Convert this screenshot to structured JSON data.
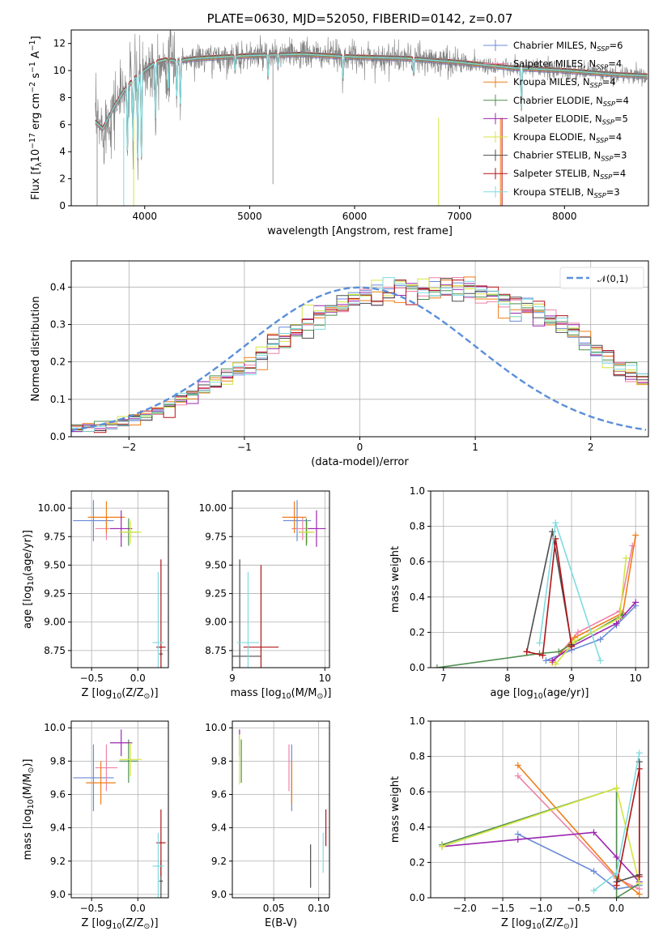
{
  "chart_data": [
    {
      "type": "line",
      "title": "PLATE=0630, MJD=52050, FIBERID=0142, z=0.07",
      "xlabel": "wavelength [Angstrom, rest frame]",
      "ylabel": "Flux [f$_\\lambda$10$^{-17}$ erg cm$^{-2}$ s$^{-1}$ A$^{-1}$]",
      "xlim": [
        3300,
        8800
      ],
      "ylim": [
        0,
        13
      ],
      "xticks": [
        4000,
        5000,
        6000,
        7000,
        8000
      ],
      "yticks": [
        0,
        2,
        4,
        6,
        8,
        10,
        12
      ],
      "legend_position": "right",
      "data_color": "#808080",
      "spectrum_envelope": {
        "x": [
          3530,
          3600,
          3700,
          3800,
          3900,
          4000,
          4100,
          4200,
          4300,
          4500,
          5000,
          5500,
          6000,
          6500,
          7000,
          7500,
          8000,
          8500,
          8800
        ],
        "y": [
          6.2,
          5.7,
          7.2,
          8.5,
          9.4,
          10.0,
          10.6,
          10.8,
          10.7,
          10.9,
          11.1,
          11.2,
          11.0,
          10.9,
          10.6,
          10.2,
          10.0,
          9.7,
          9.6
        ]
      },
      "series": [
        {
          "name": "Chabrier MILES, N$_{SSP}$=6",
          "color": "#6a8ad8"
        },
        {
          "name": "Salpeter MILES, N$_{SSP}$=4",
          "color": "#ee82a8"
        },
        {
          "name": "Kroupa MILES, N$_{SSP}$=4",
          "color": "#f07d17"
        },
        {
          "name": "Chabrier ELODIE, N$_{SSP}$=4",
          "color": "#4f8f4f"
        },
        {
          "name": "Salpeter ELODIE, N$_{SSP}$=5",
          "color": "#9b27b0"
        },
        {
          "name": "Kroupa ELODIE, N$_{SSP}$=4",
          "color": "#d4e640"
        },
        {
          "name": "Chabrier STELIB, N$_{SSP}$=3",
          "color": "#4d4d4d"
        },
        {
          "name": "Salpeter STELIB, N$_{SSP}$=4",
          "color": "#b31318"
        },
        {
          "name": "Kroupa STELIB, N$_{SSP}$=3",
          "color": "#7fdbdf"
        }
      ]
    },
    {
      "type": "line",
      "xlabel": "(data-model)/error",
      "ylabel": "Normed distribution",
      "xlim": [
        -2.5,
        2.5
      ],
      "ylim": [
        0,
        0.47
      ],
      "xticks": [
        -2,
        -1,
        0,
        1,
        2
      ],
      "yticks": [
        0.0,
        0.1,
        0.2,
        0.3,
        0.4
      ],
      "grid": true,
      "legend_position": "top-right",
      "gaussian": {
        "label": "$\\mathcal{N}(0,1)$",
        "mu": 0,
        "sigma": 1,
        "color": "#5b8fd9"
      },
      "histogram_bin_edges_start": -2.5,
      "histogram_bin_width": 0.1,
      "histogram_profile": [
        0.018,
        0.022,
        0.027,
        0.033,
        0.04,
        0.048,
        0.057,
        0.068,
        0.08,
        0.093,
        0.108,
        0.124,
        0.141,
        0.16,
        0.18,
        0.2,
        0.22,
        0.24,
        0.262,
        0.285,
        0.3,
        0.32,
        0.338,
        0.352,
        0.365,
        0.375,
        0.383,
        0.389,
        0.393,
        0.395,
        0.398,
        0.397,
        0.395,
        0.393,
        0.39,
        0.385,
        0.38,
        0.37,
        0.36,
        0.345,
        0.33,
        0.312,
        0.295,
        0.275,
        0.255,
        0.235,
        0.213,
        0.192,
        0.172,
        0.15,
        0.131,
        0.113,
        0.097,
        0.082,
        0.069,
        0.057,
        0.047,
        0.038,
        0.031,
        0.025,
        0.02,
        0.017,
        0.014,
        0.012,
        0.01,
        0.009,
        0.008,
        0.007,
        0.006,
        0.005,
        0.004
      ]
    },
    {
      "type": "scatter",
      "xlabel": "Z [log$_{10}$(Z/Z$_\\odot$)]",
      "ylabel": "age  [log$_{10}$(age/yr)]",
      "xlim": [
        -0.72,
        0.33
      ],
      "ylim": [
        8.6,
        10.15
      ],
      "xticks": [
        -0.5,
        0.0
      ],
      "yticks": [
        8.75,
        9.0,
        9.25,
        9.5,
        9.75,
        10.0
      ],
      "grid": true,
      "points": [
        {
          "series": "Chabrier MILES",
          "x": -0.48,
          "xerr": 0.22,
          "y": 9.89,
          "yerr": 0.18
        },
        {
          "series": "Salpeter MILES",
          "x": -0.34,
          "xerr": 0.12,
          "y": 9.82,
          "yerr": 0.1
        },
        {
          "series": "Kroupa MILES",
          "x": -0.34,
          "xerr": 0.2,
          "y": 9.92,
          "yerr": 0.14
        },
        {
          "series": "Chabrier ELODIE",
          "x": -0.1,
          "xerr": 0.1,
          "y": 9.79,
          "yerr": 0.12
        },
        {
          "series": "Salpeter ELODIE",
          "x": -0.18,
          "xerr": 0.12,
          "y": 9.82,
          "yerr": 0.16
        },
        {
          "series": "Kroupa ELODIE",
          "x": -0.08,
          "xerr": 0.12,
          "y": 9.79,
          "yerr": 0.1
        },
        {
          "series": "Chabrier STELIB",
          "x": 0.25,
          "xerr": 0.02,
          "y": 8.72,
          "yerr": 0.02
        },
        {
          "series": "Salpeter STELIB",
          "x": 0.25,
          "xerr": 0.05,
          "y": 8.78,
          "yerr": 0.77
        },
        {
          "series": "Kroupa STELIB",
          "x": 0.22,
          "xerr": 0.06,
          "y": 8.82,
          "yerr": 0.62
        }
      ]
    },
    {
      "type": "scatter",
      "xlabel": "mass [log$_{10}$(M/M$_\\odot$)]",
      "ylabel": "",
      "xlim": [
        9.0,
        10.05
      ],
      "ylim": [
        8.6,
        10.15
      ],
      "xticks": [
        9,
        10
      ],
      "yticks": [
        8.75,
        9.0,
        9.25,
        9.5,
        9.75,
        10.0
      ],
      "grid": true,
      "points": [
        {
          "series": "Chabrier MILES",
          "x": 9.7,
          "xerr": 0.15,
          "y": 9.89,
          "yerr": 0.18
        },
        {
          "series": "Salpeter MILES",
          "x": 9.76,
          "xerr": 0.12,
          "y": 9.82,
          "yerr": 0.1
        },
        {
          "series": "Kroupa MILES",
          "x": 9.67,
          "xerr": 0.13,
          "y": 9.92,
          "yerr": 0.14
        },
        {
          "series": "Chabrier ELODIE",
          "x": 9.8,
          "xerr": 0.08,
          "y": 9.79,
          "yerr": 0.12
        },
        {
          "series": "Salpeter ELODIE",
          "x": 9.91,
          "xerr": 0.1,
          "y": 9.82,
          "yerr": 0.16
        },
        {
          "series": "Kroupa ELODIE",
          "x": 9.81,
          "xerr": 0.08,
          "y": 9.79,
          "yerr": 0.1
        },
        {
          "series": "Chabrier STELIB",
          "x": 9.08,
          "xerr": 0.23,
          "y": 8.7,
          "yerr": 0.85
        },
        {
          "series": "Salpeter STELIB",
          "x": 9.31,
          "xerr": 0.19,
          "y": 8.78,
          "yerr": 0.72
        },
        {
          "series": "Kroupa STELIB",
          "x": 9.17,
          "xerr": 0.12,
          "y": 8.82,
          "yerr": 0.62
        }
      ]
    },
    {
      "type": "line",
      "xlabel": "age  [log$_{10}$(age/yr)]",
      "ylabel": "mass weight",
      "xlim": [
        6.8,
        10.2
      ],
      "ylim": [
        0.0,
        1.0
      ],
      "xticks": [
        7,
        8,
        9,
        10
      ],
      "yticks": [
        0.0,
        0.2,
        0.4,
        0.6,
        0.8,
        1.0
      ],
      "grid": true,
      "series": [
        {
          "name": "Chabrier MILES",
          "x": [
            8.6,
            9.0,
            9.45,
            9.7,
            10.0
          ],
          "y": [
            0.04,
            0.1,
            0.16,
            0.24,
            0.35
          ]
        },
        {
          "name": "Salpeter MILES",
          "x": [
            8.7,
            9.1,
            9.75,
            9.95
          ],
          "y": [
            0.03,
            0.2,
            0.32,
            0.69
          ]
        },
        {
          "name": "Kroupa MILES",
          "x": [
            8.7,
            9.05,
            9.8,
            10.0
          ],
          "y": [
            0.03,
            0.17,
            0.31,
            0.75
          ]
        },
        {
          "name": "Chabrier ELODIE",
          "x": [
            6.9,
            8.5,
            8.8,
            9.8
          ],
          "y": [
            0.0,
            0.08,
            0.09,
            0.3
          ]
        },
        {
          "name": "Salpeter ELODIE",
          "x": [
            8.7,
            9.0,
            9.7,
            10.0
          ],
          "y": [
            0.04,
            0.12,
            0.25,
            0.37
          ]
        },
        {
          "name": "Kroupa ELODIE",
          "x": [
            8.75,
            9.05,
            9.75,
            9.85
          ],
          "y": [
            0.02,
            0.15,
            0.28,
            0.62
          ]
        },
        {
          "name": "Chabrier STELIB",
          "x": [
            8.3,
            8.7,
            9.0
          ],
          "y": [
            0.09,
            0.77,
            0.13
          ]
        },
        {
          "name": "Salpeter STELIB",
          "x": [
            8.3,
            8.55,
            8.75,
            9.0
          ],
          "y": [
            0.09,
            0.07,
            0.73,
            0.12
          ]
        },
        {
          "name": "Kroupa STELIB",
          "x": [
            8.5,
            8.75,
            9.45
          ],
          "y": [
            0.14,
            0.82,
            0.04
          ]
        }
      ]
    },
    {
      "type": "scatter",
      "xlabel": "Z [log$_{10}$(Z/Z$_\\odot$)]",
      "ylabel": "mass [log$_{10}$(M/M$_\\odot$)]",
      "xlim": [
        -0.72,
        0.33
      ],
      "ylim": [
        8.98,
        10.04
      ],
      "xticks": [
        -0.5,
        0.0
      ],
      "yticks": [
        9.0,
        9.2,
        9.4,
        9.6,
        9.8,
        10.0
      ],
      "grid": true,
      "points": [
        {
          "series": "Chabrier MILES",
          "x": -0.48,
          "xerr": 0.22,
          "y": 9.7,
          "yerr": 0.2
        },
        {
          "series": "Salpeter MILES",
          "x": -0.34,
          "xerr": 0.12,
          "y": 9.76,
          "yerr": 0.14
        },
        {
          "series": "Kroupa MILES",
          "x": -0.4,
          "xerr": 0.16,
          "y": 9.67,
          "yerr": 0.13
        },
        {
          "series": "Chabrier ELODIE",
          "x": -0.1,
          "xerr": 0.1,
          "y": 9.8,
          "yerr": 0.13
        },
        {
          "series": "Salpeter ELODIE",
          "x": -0.18,
          "xerr": 0.12,
          "y": 9.91,
          "yerr": 0.08
        },
        {
          "series": "Kroupa ELODIE",
          "x": -0.08,
          "xerr": 0.12,
          "y": 9.81,
          "yerr": 0.1
        },
        {
          "series": "Chabrier STELIB",
          "x": 0.25,
          "xerr": 0.02,
          "y": 9.08,
          "yerr": 0.12
        },
        {
          "series": "Salpeter STELIB",
          "x": 0.25,
          "xerr": 0.05,
          "y": 9.31,
          "yerr": 0.2
        },
        {
          "series": "Kroupa STELIB",
          "x": 0.22,
          "xerr": 0.06,
          "y": 9.17,
          "yerr": 0.2
        }
      ]
    },
    {
      "type": "scatter",
      "xlabel": "E(B-V)",
      "ylabel": "",
      "xlim": [
        0.004,
        0.112
      ],
      "ylim": [
        8.98,
        10.04
      ],
      "xticks": [
        0.05,
        0.1
      ],
      "yticks": [
        9.0,
        9.2,
        9.4,
        9.6,
        9.8,
        10.0
      ],
      "grid": true,
      "points": [
        {
          "series": "Chabrier MILES",
          "x": 0.07,
          "y": 9.7,
          "yerr": 0.2
        },
        {
          "series": "Salpeter MILES",
          "x": 0.067,
          "y": 9.76,
          "yerr": 0.14
        },
        {
          "series": "Kroupa MILES",
          "x": 0.07,
          "y": 9.67,
          "yerr": 0.13
        },
        {
          "series": "Chabrier ELODIE",
          "x": 0.014,
          "y": 9.8,
          "yerr": 0.13
        },
        {
          "series": "Salpeter ELODIE",
          "x": 0.012,
          "y": 9.91,
          "yerr": 0.08
        },
        {
          "series": "Kroupa ELODIE",
          "x": 0.012,
          "y": 9.81,
          "yerr": 0.15
        },
        {
          "series": "Chabrier STELIB",
          "x": 0.091,
          "y": 9.17,
          "yerr": 0.13
        },
        {
          "series": "Salpeter STELIB",
          "x": 0.108,
          "y": 9.4,
          "yerr": 0.11
        },
        {
          "series": "Kroupa STELIB",
          "x": 0.105,
          "y": 9.25,
          "yerr": 0.12
        }
      ]
    },
    {
      "type": "line",
      "xlabel": "Z [log$_{10}$(Z/Z$_\\odot$)]",
      "ylabel": "mass weight",
      "xlim": [
        -2.45,
        0.42
      ],
      "ylim": [
        0.0,
        1.0
      ],
      "xticks": [
        -2.0,
        -1.5,
        -1.0,
        -0.5,
        0.0
      ],
      "yticks": [
        0.0,
        0.2,
        0.4,
        0.6,
        0.8,
        1.0
      ],
      "grid": true,
      "series": [
        {
          "name": "Chabrier MILES",
          "x": [
            -1.3,
            -0.3,
            0.0,
            0.3
          ],
          "y": [
            0.36,
            0.15,
            0.05,
            0.07
          ]
        },
        {
          "name": "Salpeter MILES",
          "x": [
            -1.3,
            0.0,
            0.3
          ],
          "y": [
            0.69,
            0.11,
            0.05
          ]
        },
        {
          "name": "Kroupa MILES",
          "x": [
            -1.3,
            0.0,
            0.3
          ],
          "y": [
            0.75,
            0.12,
            0.02
          ]
        },
        {
          "name": "Chabrier ELODIE",
          "x": [
            -2.3,
            0.0,
            0.0,
            0.3
          ],
          "y": [
            0.3,
            0.62,
            0.0,
            0.08
          ]
        },
        {
          "name": "Salpeter ELODIE",
          "x": [
            -2.3,
            -1.3,
            -0.3,
            0.0,
            0.3
          ],
          "y": [
            0.29,
            0.33,
            0.37,
            0.23,
            0.09
          ]
        },
        {
          "name": "Kroupa ELODIE",
          "x": [
            -2.3,
            0.0,
            0.3
          ],
          "y": [
            0.29,
            0.62,
            0.08
          ]
        },
        {
          "name": "Chabrier STELIB",
          "x": [
            0.0,
            0.3,
            0.3
          ],
          "y": [
            0.09,
            0.13,
            0.77
          ]
        },
        {
          "name": "Salpeter STELIB",
          "x": [
            0.0,
            0.3,
            0.3
          ],
          "y": [
            0.07,
            0.73,
            0.12
          ]
        },
        {
          "name": "Kroupa STELIB",
          "x": [
            -0.3,
            0.0,
            0.3
          ],
          "y": [
            0.04,
            0.14,
            0.82
          ]
        }
      ]
    }
  ]
}
